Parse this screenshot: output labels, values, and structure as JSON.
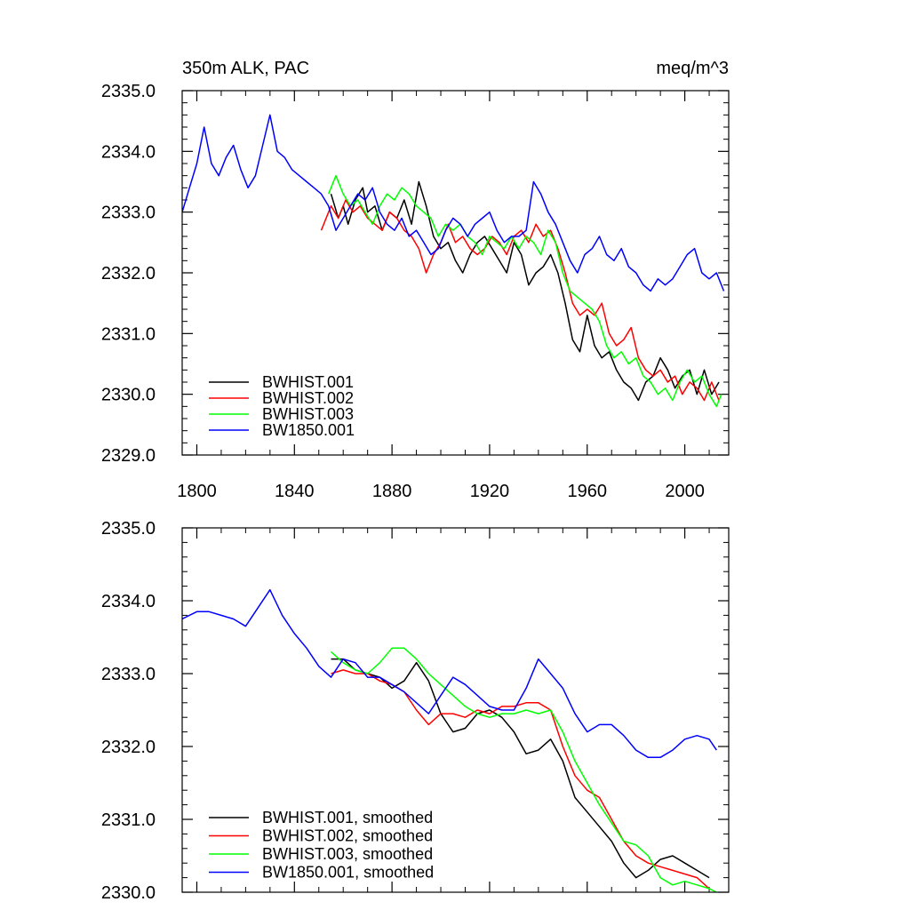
{
  "chart_data": [
    {
      "type": "line",
      "title_left": "350m ALK, PAC",
      "title_right": "meq/m^3",
      "xlabel": "",
      "ylabel": "",
      "xlim": [
        1794,
        2018
      ],
      "ylim": [
        2329.0,
        2335.0
      ],
      "x_ticks": [
        1800,
        1840,
        1880,
        1920,
        1960,
        2000
      ],
      "x_tick_labels": [
        "1800",
        "1840",
        "1880",
        "1920",
        "1960",
        "2000"
      ],
      "y_ticks": [
        2329.0,
        2330.0,
        2331.0,
        2332.0,
        2333.0,
        2334.0,
        2335.0
      ],
      "y_tick_labels": [
        "2329.0",
        "2330.0",
        "2331.0",
        "2332.0",
        "2333.0",
        "2334.0",
        "2335.0"
      ],
      "legend_position": "bottom-left",
      "grid": false,
      "series": [
        {
          "name": "BWHIST.001",
          "color": "#000000",
          "x": [
            1855,
            1858,
            1860,
            1862,
            1865,
            1868,
            1870,
            1873,
            1876,
            1879,
            1882,
            1885,
            1888,
            1891,
            1894,
            1897,
            1900,
            1903,
            1906,
            1909,
            1912,
            1915,
            1918,
            1921,
            1924,
            1927,
            1930,
            1933,
            1936,
            1939,
            1942,
            1945,
            1948,
            1951,
            1954,
            1957,
            1960,
            1963,
            1966,
            1969,
            1972,
            1975,
            1978,
            1981,
            1984,
            1987,
            1990,
            1993,
            1996,
            1999,
            2002,
            2005,
            2008,
            2011,
            2014
          ],
          "y": [
            2333.3,
            2332.9,
            2333.1,
            2332.8,
            2333.2,
            2333.4,
            2333.0,
            2333.1,
            2332.7,
            2333.0,
            2332.9,
            2333.2,
            2332.8,
            2333.5,
            2333.1,
            2332.6,
            2332.4,
            2332.5,
            2332.2,
            2332.0,
            2332.3,
            2332.5,
            2332.6,
            2332.4,
            2332.2,
            2332.0,
            2332.5,
            2332.3,
            2331.8,
            2332.0,
            2332.1,
            2332.3,
            2332.0,
            2331.5,
            2330.9,
            2330.7,
            2331.3,
            2330.8,
            2330.6,
            2330.7,
            2330.4,
            2330.2,
            2330.1,
            2329.9,
            2330.2,
            2330.3,
            2330.6,
            2330.4,
            2330.1,
            2330.3,
            2330.4,
            2330.0,
            2330.4,
            2330.0,
            2330.2
          ]
        },
        {
          "name": "BWHIST.002",
          "color": "#ff0000",
          "x": [
            1851,
            1855,
            1858,
            1861,
            1864,
            1867,
            1870,
            1873,
            1876,
            1879,
            1882,
            1885,
            1888,
            1891,
            1894,
            1897,
            1900,
            1903,
            1906,
            1909,
            1912,
            1915,
            1918,
            1921,
            1924,
            1927,
            1930,
            1933,
            1936,
            1939,
            1942,
            1945,
            1948,
            1951,
            1954,
            1957,
            1960,
            1963,
            1966,
            1969,
            1972,
            1975,
            1978,
            1981,
            1984,
            1987,
            1990,
            1993,
            1996,
            1999,
            2002,
            2005,
            2008,
            2011,
            2014
          ],
          "y": [
            2332.7,
            2333.1,
            2332.9,
            2333.2,
            2333.0,
            2333.1,
            2332.9,
            2332.8,
            2332.7,
            2333.0,
            2332.9,
            2332.7,
            2332.6,
            2332.4,
            2332.0,
            2332.3,
            2332.5,
            2332.8,
            2332.5,
            2332.6,
            2332.4,
            2332.3,
            2332.4,
            2332.6,
            2332.5,
            2332.3,
            2332.6,
            2332.7,
            2332.5,
            2332.8,
            2332.6,
            2332.7,
            2332.4,
            2332.0,
            2331.5,
            2331.3,
            2331.4,
            2331.3,
            2331.5,
            2331.0,
            2330.8,
            2330.9,
            2331.1,
            2330.6,
            2330.4,
            2330.3,
            2330.4,
            2330.2,
            2330.3,
            2330.0,
            2330.2,
            2330.1,
            2329.9,
            2330.2,
            2329.9
          ]
        },
        {
          "name": "BWHIST.003",
          "color": "#00ff00",
          "x": [
            1854,
            1857,
            1860,
            1863,
            1866,
            1869,
            1872,
            1875,
            1878,
            1881,
            1884,
            1887,
            1890,
            1893,
            1896,
            1899,
            1902,
            1905,
            1908,
            1911,
            1914,
            1917,
            1920,
            1923,
            1926,
            1929,
            1932,
            1935,
            1938,
            1941,
            1944,
            1947,
            1950,
            1953,
            1956,
            1959,
            1962,
            1965,
            1968,
            1971,
            1974,
            1977,
            1980,
            1983,
            1986,
            1989,
            1992,
            1995,
            1998,
            2001,
            2004,
            2007,
            2010,
            2013,
            2015
          ],
          "y": [
            2333.3,
            2333.6,
            2333.3,
            2333.1,
            2333.2,
            2333.0,
            2332.8,
            2333.1,
            2333.3,
            2333.2,
            2333.4,
            2333.3,
            2333.1,
            2333.0,
            2332.9,
            2332.6,
            2332.8,
            2332.7,
            2332.8,
            2332.6,
            2332.5,
            2332.3,
            2332.6,
            2332.5,
            2332.4,
            2332.6,
            2332.4,
            2332.6,
            2332.5,
            2332.3,
            2332.7,
            2332.5,
            2332.0,
            2331.7,
            2331.6,
            2331.5,
            2331.4,
            2331.2,
            2330.8,
            2330.6,
            2330.7,
            2330.5,
            2330.6,
            2330.3,
            2330.2,
            2330.0,
            2330.1,
            2329.9,
            2330.2,
            2330.4,
            2330.2,
            2330.3,
            2330.0,
            2329.8,
            2330.0
          ]
        },
        {
          "name": "BW1850.001",
          "color": "#0000ff",
          "x": [
            1794,
            1797,
            1800,
            1803,
            1806,
            1809,
            1812,
            1815,
            1818,
            1821,
            1824,
            1827,
            1830,
            1833,
            1836,
            1839,
            1842,
            1845,
            1848,
            1851,
            1854,
            1857,
            1860,
            1863,
            1866,
            1869,
            1872,
            1875,
            1878,
            1881,
            1884,
            1887,
            1890,
            1893,
            1896,
            1899,
            1902,
            1905,
            1908,
            1911,
            1914,
            1917,
            1920,
            1923,
            1926,
            1929,
            1932,
            1935,
            1938,
            1941,
            1944,
            1947,
            1950,
            1953,
            1956,
            1959,
            1962,
            1965,
            1968,
            1971,
            1974,
            1977,
            1980,
            1983,
            1986,
            1989,
            1992,
            1995,
            1998,
            2001,
            2004,
            2007,
            2010,
            2013,
            2016
          ],
          "y": [
            2333.0,
            2333.4,
            2333.8,
            2334.4,
            2333.8,
            2333.6,
            2333.9,
            2334.1,
            2333.7,
            2333.4,
            2333.6,
            2334.1,
            2334.6,
            2334.0,
            2333.9,
            2333.7,
            2333.6,
            2333.5,
            2333.4,
            2333.3,
            2333.1,
            2332.7,
            2332.9,
            2333.1,
            2333.3,
            2333.2,
            2333.4,
            2333.0,
            2332.8,
            2332.7,
            2332.9,
            2332.6,
            2332.7,
            2332.5,
            2332.3,
            2332.4,
            2332.7,
            2332.9,
            2332.8,
            2332.6,
            2332.8,
            2332.9,
            2333.0,
            2332.7,
            2332.5,
            2332.6,
            2332.6,
            2332.7,
            2333.5,
            2333.3,
            2333.0,
            2332.8,
            2332.5,
            2332.2,
            2332.0,
            2332.3,
            2332.4,
            2332.6,
            2332.3,
            2332.2,
            2332.4,
            2332.1,
            2332.0,
            2331.8,
            2331.7,
            2331.9,
            2331.8,
            2331.9,
            2332.1,
            2332.3,
            2332.4,
            2332.0,
            2331.9,
            2332.0,
            2331.7
          ]
        }
      ]
    },
    {
      "type": "line",
      "title_left": "",
      "title_right": "",
      "xlabel": "",
      "ylabel": "",
      "xlim": [
        1794,
        2018
      ],
      "ylim": [
        2330.0,
        2335.0
      ],
      "x_ticks": [
        1800,
        1840,
        1880,
        1920,
        1960,
        2000
      ],
      "x_tick_labels": [],
      "y_ticks": [
        2330.0,
        2331.0,
        2332.0,
        2333.0,
        2334.0,
        2335.0
      ],
      "y_tick_labels": [
        "2330.0",
        "2331.0",
        "2332.0",
        "2333.0",
        "2334.0",
        "2335.0"
      ],
      "legend_position": "bottom-left",
      "grid": false,
      "series": [
        {
          "name": "BWHIST.001, smoothed",
          "color": "#000000",
          "x": [
            1855,
            1860,
            1865,
            1870,
            1875,
            1880,
            1885,
            1890,
            1895,
            1900,
            1905,
            1910,
            1915,
            1920,
            1925,
            1930,
            1935,
            1940,
            1945,
            1950,
            1955,
            1960,
            1965,
            1970,
            1975,
            1980,
            1985,
            1990,
            1995,
            2000,
            2005,
            2010
          ],
          "y": [
            2333.2,
            2333.2,
            2333.05,
            2333.0,
            2332.95,
            2332.8,
            2332.9,
            2333.15,
            2332.9,
            2332.45,
            2332.2,
            2332.25,
            2332.45,
            2332.5,
            2332.4,
            2332.2,
            2331.9,
            2331.95,
            2332.1,
            2331.8,
            2331.3,
            2331.1,
            2330.9,
            2330.7,
            2330.4,
            2330.2,
            2330.3,
            2330.45,
            2330.5,
            2330.4,
            2330.3,
            2330.2
          ]
        },
        {
          "name": "BWHIST.002, smoothed",
          "color": "#ff0000",
          "x": [
            1855,
            1860,
            1865,
            1870,
            1875,
            1880,
            1885,
            1890,
            1895,
            1900,
            1905,
            1910,
            1915,
            1920,
            1925,
            1930,
            1935,
            1940,
            1945,
            1950,
            1955,
            1960,
            1965,
            1970,
            1975,
            1980,
            1985,
            1990,
            1995,
            2000,
            2005,
            2010
          ],
          "y": [
            2333.0,
            2333.05,
            2333.0,
            2333.0,
            2332.9,
            2332.85,
            2332.75,
            2332.5,
            2332.3,
            2332.45,
            2332.45,
            2332.4,
            2332.5,
            2332.45,
            2332.55,
            2332.55,
            2332.6,
            2332.6,
            2332.5,
            2332.0,
            2331.6,
            2331.4,
            2331.3,
            2331.0,
            2330.7,
            2330.5,
            2330.4,
            2330.35,
            2330.3,
            2330.25,
            2330.2,
            2330.05
          ]
        },
        {
          "name": "BWHIST.003, smoothed",
          "color": "#00ff00",
          "x": [
            1855,
            1860,
            1865,
            1870,
            1875,
            1880,
            1885,
            1890,
            1895,
            1900,
            1905,
            1910,
            1915,
            1920,
            1925,
            1930,
            1935,
            1940,
            1945,
            1950,
            1955,
            1960,
            1965,
            1970,
            1975,
            1980,
            1985,
            1990,
            1995,
            2000,
            2005,
            2010,
            2013
          ],
          "y": [
            2333.3,
            2333.15,
            2333.05,
            2333.0,
            2333.15,
            2333.35,
            2333.35,
            2333.2,
            2333.0,
            2332.85,
            2332.7,
            2332.55,
            2332.45,
            2332.4,
            2332.45,
            2332.45,
            2332.5,
            2332.45,
            2332.5,
            2332.2,
            2331.8,
            2331.5,
            2331.2,
            2330.95,
            2330.7,
            2330.65,
            2330.5,
            2330.2,
            2330.1,
            2330.15,
            2330.1,
            2330.05,
            2330.0
          ]
        },
        {
          "name": "BW1850.001, smoothed",
          "color": "#0000ff",
          "x": [
            1794,
            1800,
            1805,
            1810,
            1815,
            1820,
            1825,
            1830,
            1835,
            1840,
            1845,
            1850,
            1855,
            1860,
            1865,
            1870,
            1875,
            1880,
            1885,
            1890,
            1895,
            1900,
            1905,
            1910,
            1915,
            1920,
            1925,
            1930,
            1935,
            1940,
            1945,
            1950,
            1955,
            1960,
            1965,
            1970,
            1975,
            1980,
            1985,
            1990,
            1995,
            2000,
            2005,
            2010,
            2013
          ],
          "y": [
            2333.75,
            2333.85,
            2333.85,
            2333.8,
            2333.75,
            2333.65,
            2333.9,
            2334.15,
            2333.8,
            2333.55,
            2333.35,
            2333.1,
            2332.95,
            2333.2,
            2333.15,
            2332.95,
            2332.95,
            2332.85,
            2332.75,
            2332.6,
            2332.45,
            2332.7,
            2332.95,
            2332.85,
            2332.7,
            2332.55,
            2332.5,
            2332.5,
            2332.8,
            2333.2,
            2333.0,
            2332.8,
            2332.45,
            2332.2,
            2332.3,
            2332.3,
            2332.15,
            2331.95,
            2331.85,
            2331.85,
            2331.95,
            2332.1,
            2332.15,
            2332.1,
            2331.95
          ]
        }
      ]
    }
  ]
}
